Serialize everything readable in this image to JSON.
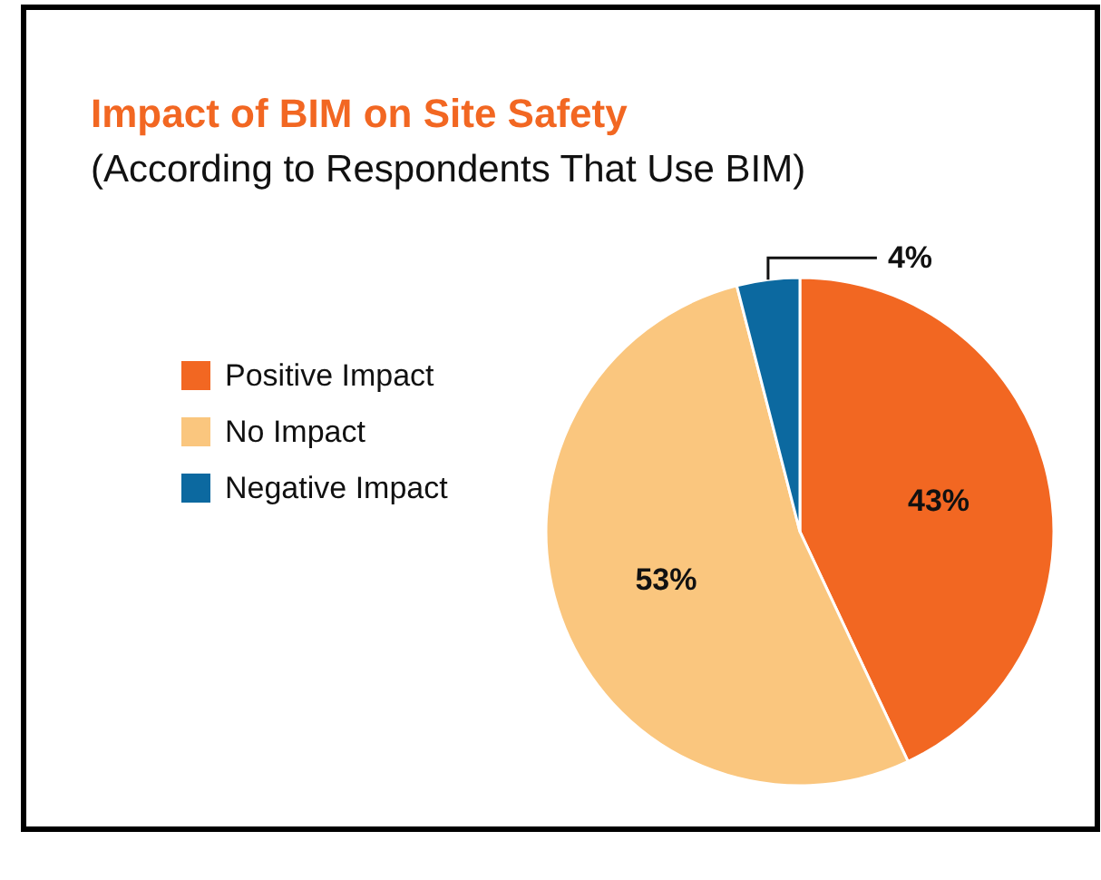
{
  "chart_data": {
    "type": "pie",
    "title": "Impact of BIM on Site Safety",
    "subtitle": "(According to Respondents That Use BIM)",
    "categories": [
      "Positive Impact",
      "No Impact",
      "Negative Impact"
    ],
    "values": [
      43,
      53,
      4
    ],
    "colors": [
      "#f26722",
      "#fac67e",
      "#0c69a0"
    ],
    "value_labels": [
      "43%",
      "53%",
      "4%"
    ],
    "legend": "left"
  }
}
